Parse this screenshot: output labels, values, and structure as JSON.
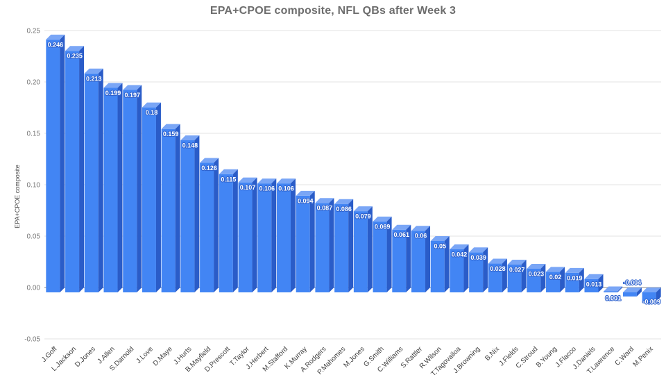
{
  "title": "EPA+CPOE composite, NFL QBs after Week 3",
  "chart_data": {
    "type": "bar",
    "style": "3d-column",
    "title": "EPA+CPOE composite, NFL QBs after Week 3",
    "xlabel": "",
    "ylabel": "EPA+CPOE composite",
    "ylim": [
      -0.05,
      0.25
    ],
    "ytick_interval": 0.05,
    "ytick_labels": [
      "-0.05",
      "0.00",
      "0.05",
      "0.10",
      "0.15",
      "0.20",
      "0.25"
    ],
    "grid": true,
    "legend": "none",
    "categories": [
      "J.Goff",
      "L.Jackson",
      "D.Jones",
      "J.Allen",
      "S.Darnold",
      "J.Love",
      "D.Maye",
      "J.Hurts",
      "B.Mayfield",
      "D.Prescott",
      "T.Taylor",
      "J.Herbert",
      "M.Stafford",
      "K.Murray",
      "A.Rodgers",
      "P.Mahomes",
      "M.Jones",
      "G.Smith",
      "C.Williams",
      "S.Rattler",
      "R.Wilson",
      "T.Tagovailoa",
      "J.Browning",
      "B.Nix",
      "J.Fields",
      "C.Stroud",
      "B.Young",
      "J.Flacco",
      "J.Daniels",
      "T.Lawrence",
      "C.Ward",
      "M.Penix"
    ],
    "values": [
      0.246,
      0.235,
      0.213,
      0.199,
      0.197,
      0.18,
      0.159,
      0.148,
      0.126,
      0.115,
      0.107,
      0.106,
      0.106,
      0.094,
      0.087,
      0.086,
      0.079,
      0.069,
      0.061,
      0.06,
      0.05,
      0.042,
      0.039,
      0.028,
      0.027,
      0.023,
      0.02,
      0.019,
      0.013,
      0.001,
      -0.004,
      -0.009
    ],
    "value_labels": [
      "0.246",
      "0.235",
      "0.213",
      "0.199",
      "0.197",
      "0.18",
      "0.159",
      "0.148",
      "0.126",
      "0.115",
      "0.107",
      "0.106",
      "0.106",
      "0.094",
      "0.087",
      "0.086",
      "0.079",
      "0.069",
      "0.061",
      "0.06",
      "0.05",
      "0.042",
      "0.039",
      "0.028",
      "0.027",
      "0.023",
      "0.02",
      "0.019",
      "0.013",
      "0.001",
      "-0.004",
      "-0.009"
    ],
    "colors": {
      "title": "#6d6d6d",
      "bar_front": "#4285f4",
      "bar_side": "#2a5cc8",
      "bar_top": "#7aa6f6",
      "label_text": "#ffffff",
      "label_halo": "#3064cf",
      "gridline": "#e3e3e3",
      "zero_line": "#8a8a8a",
      "axis_tick": "#757575",
      "axis_title": "#4d4d4d",
      "category_label": "#3d3d3d"
    }
  }
}
